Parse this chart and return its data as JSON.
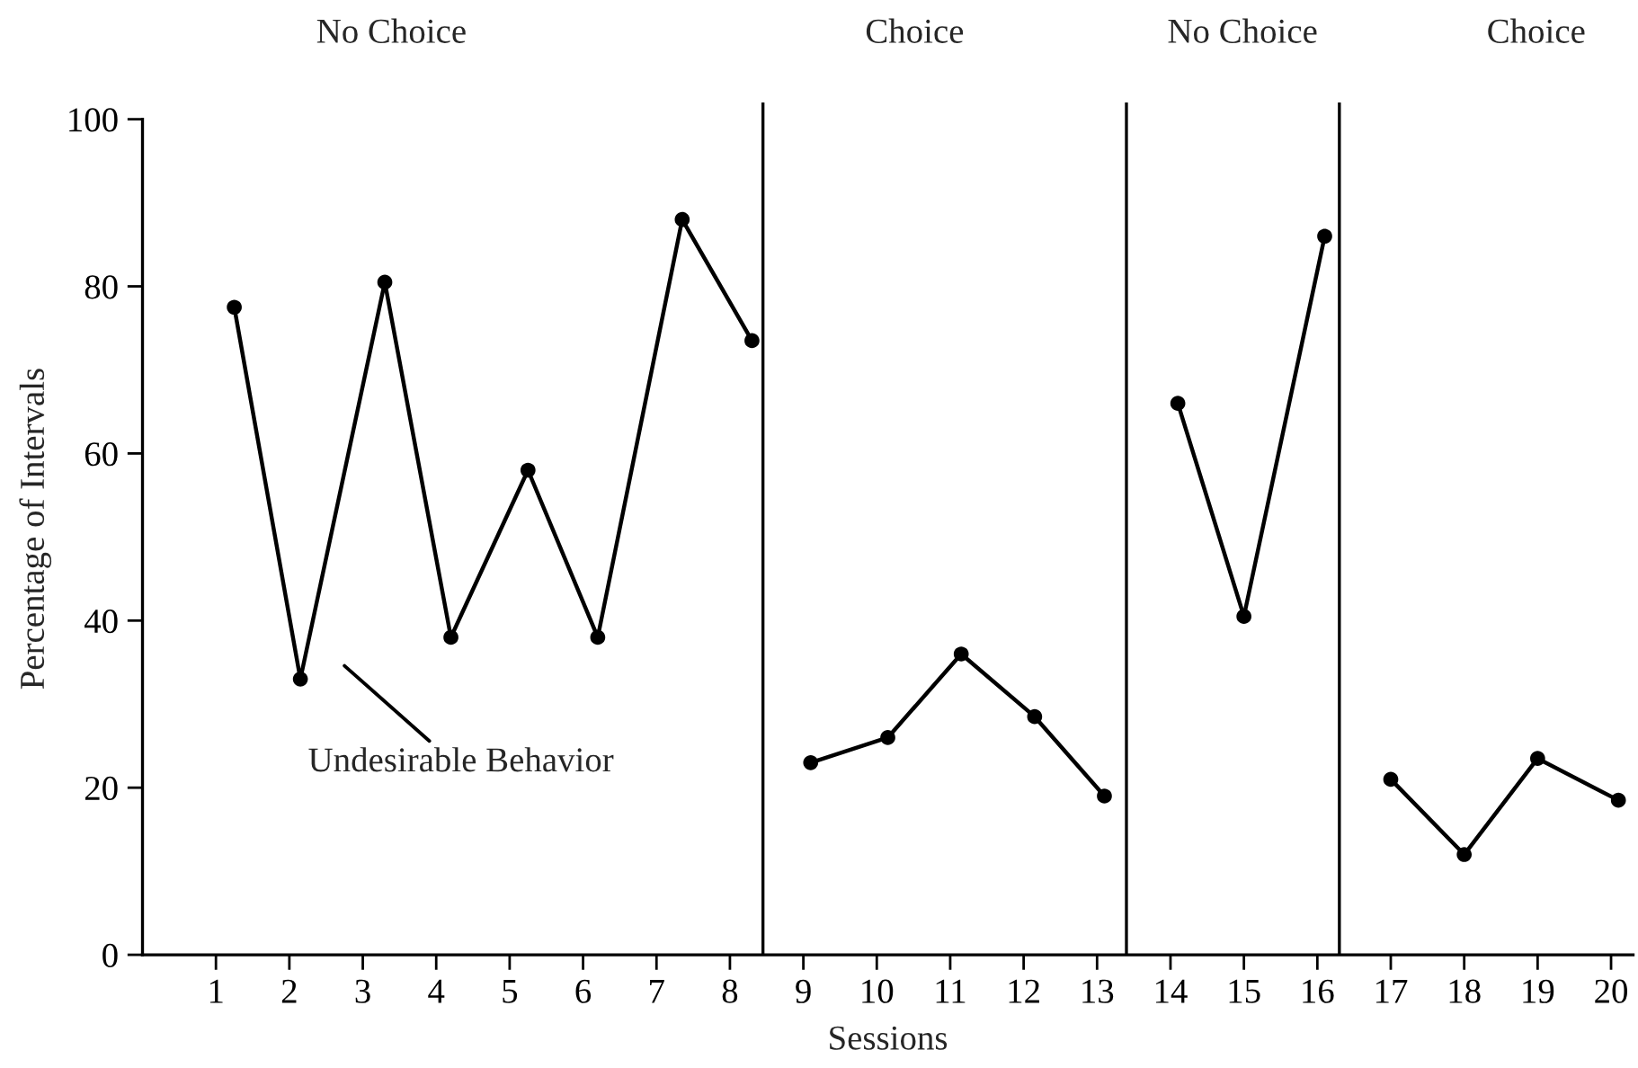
{
  "chart_data": {
    "type": "line",
    "xlabel": "Sessions",
    "ylabel": "Percentage of Intervals",
    "xlim": [
      0,
      20.3
    ],
    "xticks": [
      1,
      2,
      3,
      4,
      5,
      6,
      7,
      8,
      9,
      10,
      11,
      12,
      13,
      14,
      15,
      16,
      17,
      18,
      19,
      20
    ],
    "ylim": [
      0,
      102
    ],
    "yticks": [
      0,
      20,
      40,
      60,
      80,
      100
    ],
    "series": [
      {
        "color": "#000000",
        "x": [
          1.25,
          2.15,
          3.3,
          4.2,
          5.25,
          6.2,
          7.35,
          8.3
        ],
        "values": [
          77.5,
          33,
          80.5,
          38,
          58,
          38,
          88,
          73.5
        ]
      },
      {
        "color": "#000000",
        "x": [
          9.1,
          10.15,
          11.15,
          12.15,
          13.1
        ],
        "values": [
          23,
          26,
          36,
          28.5,
          19
        ]
      },
      {
        "color": "#000000",
        "x": [
          14.1,
          15,
          16.1
        ],
        "values": [
          66,
          40.5,
          86
        ]
      },
      {
        "color": "#000000",
        "x": [
          17,
          18,
          19,
          20.1
        ],
        "values": [
          21,
          12,
          23.5,
          18.5
        ]
      }
    ],
    "ref_lines": [
      {
        "axis": "x",
        "value": 8.45,
        "color": "#000000",
        "line_style": "solid"
      },
      {
        "axis": "x",
        "value": 13.4,
        "color": "#000000",
        "line_style": "solid"
      },
      {
        "axis": "x",
        "value": 16.3,
        "color": "#000000",
        "line_style": "solid"
      }
    ],
    "annotations": [
      "No Choice",
      "Choice",
      "No Choice",
      "Choice",
      "Undesirable Behavior"
    ],
    "marker": "circle",
    "line_style": "solid",
    "grid": false,
    "legend": false
  }
}
